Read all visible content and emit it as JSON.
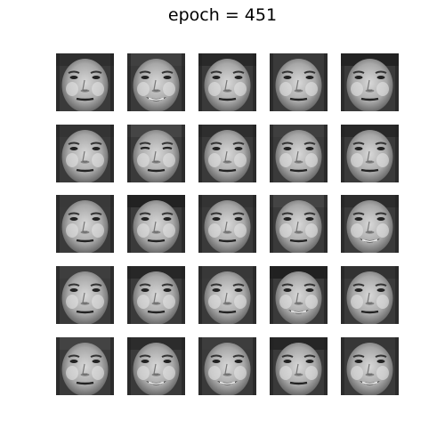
{
  "figure": {
    "title": "epoch = 451"
  },
  "grid": {
    "rows": 5,
    "cols": 5,
    "image_type": "grayscale generated face samples",
    "expressions": [
      [
        "neutral",
        "smile",
        "neutral",
        "neutral",
        "neutral"
      ],
      [
        "neutral",
        "squint",
        "neutral",
        "neutral",
        "neutral"
      ],
      [
        "neutral",
        "neutral",
        "neutral",
        "neutral",
        "smile"
      ],
      [
        "neutral",
        "neutral",
        "neutral",
        "smile",
        "neutral"
      ],
      [
        "neutral",
        "smile",
        "smile",
        "neutral",
        "smile"
      ]
    ]
  }
}
